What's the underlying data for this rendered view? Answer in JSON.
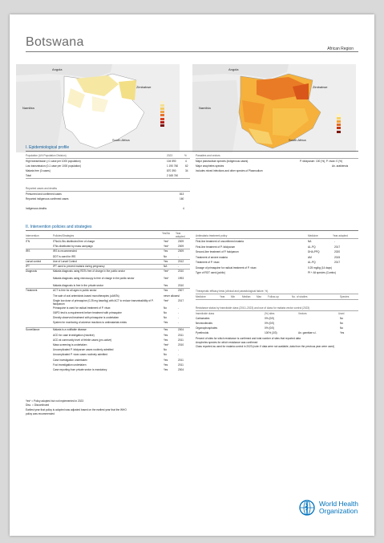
{
  "country": "Botswana",
  "region": "African Region",
  "maps": {
    "left": {
      "labels": [
        "Angola",
        "Zimbabwe",
        "Namibia",
        "South Africa"
      ]
    },
    "right": {
      "labels": [
        "Angola",
        "Zimbabwe",
        "Namibia",
        "South Africa"
      ]
    }
  },
  "epi": {
    "heading": "I. Epidemiological profile",
    "col_headers": [
      "Population (UN Population Division)",
      "2023",
      "%"
    ],
    "rows": [
      {
        "label": "High transmission (>1 case per 1000 population)",
        "value": "104 590",
        "pct": "4"
      },
      {
        "label": "Low transmission (0-1 case per 1000 population)",
        "value": "1 190 760",
        "pct": "62"
      },
      {
        "label": "Malaria free (0 cases)",
        "value": "870 390",
        "pct": "34"
      },
      {
        "label": "Total",
        "value": "2 165 740",
        "pct": ""
      }
    ],
    "cases_header": "Reported cases and deaths",
    "cases": [
      {
        "label": "Presumed and confirmed cases",
        "value": "813"
      },
      {
        "label": "Reported indigenous confirmed cases",
        "value": "160"
      },
      {
        "label": "Indigenous deaths",
        "value": "4"
      }
    ],
    "parasites_header": "Parasites and vectors",
    "parasites": [
      {
        "label": "Major plasmodium species (indigenous cases)",
        "value": "P. falciparum: 100 (%), P. vivax: 0 (%)"
      },
      {
        "label": "Major anopheles species",
        "value": "An. arabiensis"
      },
      {
        "label": "Includes mixed infections and other species of Plasmodium",
        "value": ""
      }
    ]
  },
  "policies": {
    "heading": "II. Intervention policies and strategies",
    "col_headers": [
      "Intervention",
      "Policies/Strategies",
      "Yes/No",
      "Year adopted"
    ],
    "rows": [
      {
        "group": "ITN",
        "label": "ITNs/LLINs distributed free of charge",
        "yn": "Yes*",
        "year": "2009"
      },
      {
        "group": "",
        "label": "ITNs distributed by mass campaign",
        "yn": "Yes*",
        "year": "2009"
      },
      {
        "group": "IRS",
        "label": "IRS is recommended",
        "yn": "Yes",
        "year": "2009"
      },
      {
        "group": "",
        "label": "DDT is used for IRS",
        "yn": "No",
        "year": "-"
      },
      {
        "group": "Larval control",
        "label": "Use of Larval Control",
        "yn": "Yes",
        "year": "2012"
      },
      {
        "group": "IPT",
        "label": "IPT used to prevent malaria during pregnancy",
        "yn": "NA",
        "year": "-"
      },
      {
        "group": "Diagnosis",
        "label": "Malaria diagnosis using RDTs free of charge in the public sector",
        "yn": "Yes*",
        "year": "2010"
      },
      {
        "group": "",
        "label": "Malaria diagnosis using microscopy is free of charge in the public sector",
        "yn": "Yes*",
        "year": "1993"
      },
      {
        "group": "",
        "label": "Malaria diagnosis is free in the private sector",
        "yn": "Yes",
        "year": "2010"
      },
      {
        "group": "Treatment",
        "label": "ACT is free for all ages in public sector",
        "yn": "Yes",
        "year": "2007"
      },
      {
        "group": "",
        "label": "The sale of oral artemisinin-based monotherapies (oAMTs)",
        "yn": "never allowed",
        "year": "-"
      },
      {
        "group": "",
        "label": "Single low dose of primaquine (0.25 mg base/kg) with ACT to reduce transmissibility of P. falciparum",
        "yn": "Yes*",
        "year": "2017"
      },
      {
        "group": "",
        "label": "Primaquine is used for radical treatment of P. vivax",
        "yn": "No",
        "year": "-"
      },
      {
        "group": "",
        "label": "G6PD test is a requirement before treatment with primaquine",
        "yn": "No",
        "year": "-"
      },
      {
        "group": "",
        "label": "Directly observed treatment with primaquine is undertaken",
        "yn": "No",
        "year": "-"
      },
      {
        "group": "",
        "label": "System for monitoring of adverse reactions to antimalarials exists",
        "yn": "Yes",
        "year": "-"
      },
      {
        "group": "Surveillance",
        "label": "Malaria is a notifiable disease",
        "yn": "Yes",
        "year": "2004"
      },
      {
        "group": "",
        "label": "ACD for case investigation (reactive)",
        "yn": "Yes",
        "year": "2011"
      },
      {
        "group": "",
        "label": "ACD at community level of febrile cases (pro-active)",
        "yn": "Yes",
        "year": "2011"
      },
      {
        "group": "",
        "label": "Mass screening is undertaken",
        "yn": "Yes*",
        "year": "2010"
      },
      {
        "group": "",
        "label": "Uncomplicated P. falciparum cases routinely admitted",
        "yn": "No",
        "year": "-"
      },
      {
        "group": "",
        "label": "Uncomplicated P. vivax cases routinely admitted",
        "yn": "No",
        "year": "-"
      },
      {
        "group": "",
        "label": "Case investigation undertaken",
        "yn": "Yes",
        "year": "2011"
      },
      {
        "group": "",
        "label": "Foci investigation undertaken",
        "yn": "Yes",
        "year": "2011"
      },
      {
        "group": "",
        "label": "Case reporting from private sector is mandatory",
        "yn": "Yes",
        "year": "2004"
      }
    ],
    "footnotes": [
      "Yes* = Policy adopted but not implemented in 2023",
      "Disc. = Discontinued",
      "Earliest year that policy is adopted was adjusted based on the earliest year that the WHO",
      "policy was recommended"
    ]
  },
  "treatment_policy": {
    "col_headers": [
      "Antimalaria treatment policy",
      "Medicine",
      "Year adopted"
    ],
    "rows": [
      {
        "label": "First-line treatment of unconfirmed malaria",
        "med": "NA",
        "year": "-"
      },
      {
        "label": "First-line treatment of P. falciparum",
        "med": "AL-PQ",
        "year": "2017"
      },
      {
        "label": "Second-line treatment of P. falciparum",
        "med": "DHA-PPQ",
        "year": "2020"
      },
      {
        "label": "Treatment of severe malaria",
        "med": "AM",
        "year": "2015"
      },
      {
        "label": "Treatment of P. vivax",
        "med": "AL-PQ",
        "year": "2017"
      },
      {
        "label": "Dosage of primaquine for radical treatment of P. vivax",
        "med": "0.25 mg/kg (14 days)",
        "year": ""
      },
      {
        "label": "Type of RDT used (public)",
        "med": "Pf + All species (Combo)",
        "year": ""
      }
    ]
  },
  "efficacy": {
    "header": "Therapeutic efficacy tests (clinical and parasitological failure, %)",
    "cols": [
      "Medicine",
      "Year",
      "Min",
      "Median",
      "Max",
      "Follow-up",
      "No. of studies",
      "Species"
    ]
  },
  "resistance": {
    "header": "Resistance status by insecticide class (2010–2023) and use of class for malaria vector control (2023)",
    "cols": [
      "Insecticide class",
      "(%) sites",
      "Vectors",
      "Used"
    ],
    "rows": [
      {
        "cls": "Carbamates",
        "sites": "0% (0/0)",
        "vectors": "",
        "used": "No"
      },
      {
        "cls": "Neonicotinoids",
        "sites": "0% (0/0)",
        "vectors": "",
        "used": "No"
      },
      {
        "cls": "Organophosphates",
        "sites": "0% (0/0)",
        "vectors": "",
        "used": "No"
      },
      {
        "cls": "Pyrethroids",
        "sites": "100% (3/3)",
        "vectors": "An. gambiae s.l.",
        "used": "Yes"
      }
    ],
    "notes": [
      "Percent of sites for which resistance is confirmed and total number of sites that reported data",
      "Anopheles species for which resistance was confirmed",
      "Class reported as used for malaria control in 2023 (note: if data were not available, data from the previous year were used)"
    ]
  },
  "logo": {
    "line1": "World Health",
    "line2": "Organization"
  },
  "colors": {
    "accent": "#0d5e9c",
    "who_blue": "#0072bc"
  }
}
